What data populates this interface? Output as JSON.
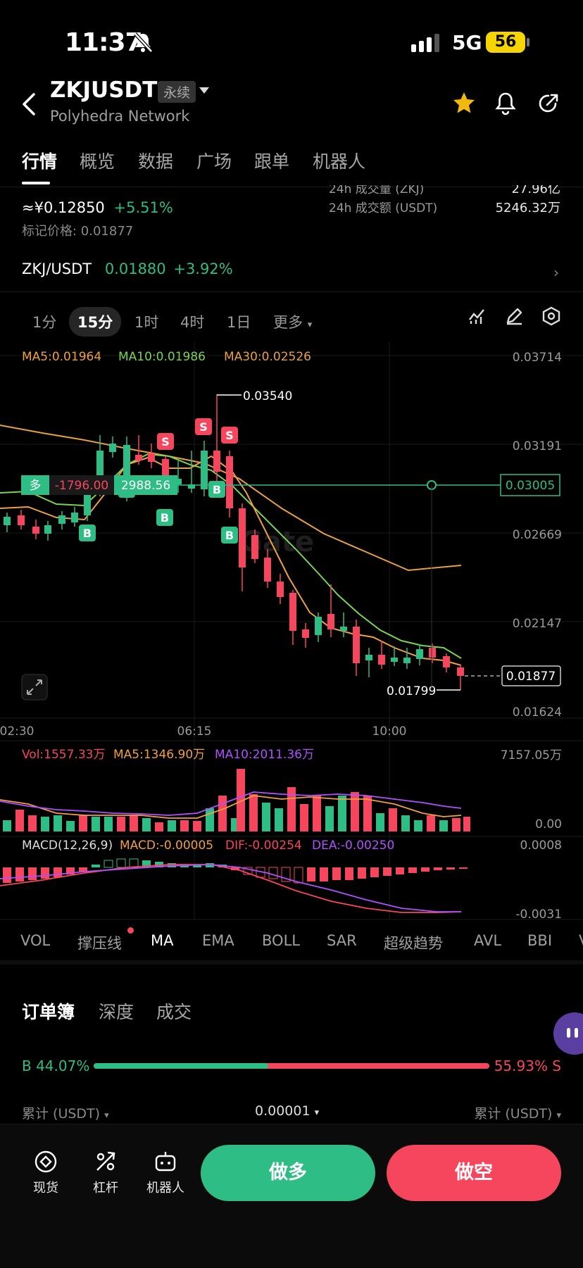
{
  "status_bar": {
    "time": "11:37",
    "network": "5G",
    "battery": "56"
  },
  "header": {
    "symbol": "ZKJUSDT",
    "contract_type": "永续",
    "subtitle": "Polyhedra Network",
    "icons": [
      "back-arrow-icon",
      "star-icon",
      "bell-icon",
      "share-icon"
    ]
  },
  "nav_tabs": [
    "行情",
    "概览",
    "数据",
    "广场",
    "跟单",
    "机器人"
  ],
  "ticker": {
    "price_cny": "≈¥0.12850",
    "change": "+5.51%",
    "mark_price": "标记价格: 0.01877",
    "stats": [
      {
        "label": "24h 成交量 (ZKJ)",
        "value": "27.96亿"
      },
      {
        "label": "24h 成交额 (USDT)",
        "value": "5246.32万"
      }
    ]
  },
  "spot_pair": {
    "name": "ZKJ/USDT",
    "price": "0.01880",
    "change": "+3.92%"
  },
  "timeframes": {
    "items": [
      "1分",
      "15分",
      "1时",
      "4时",
      "1日",
      "更多"
    ],
    "active": "15分"
  },
  "main_chart": {
    "ma_legend": {
      "ma5": "MA5:0.01964",
      "ma10": "MA10:0.01986",
      "ma30": "MA30:0.02526"
    },
    "y_ticks": [
      "0.03714",
      "0.03191",
      "0.02669",
      "0.02147",
      "0.01624"
    ],
    "x_ticks": [
      "02:30",
      "06:15",
      "10:00"
    ],
    "high_label": "0.03540",
    "low_label": "0.01799",
    "current_price": "0.01877",
    "position": {
      "side": "多",
      "pnl": "-1796.00",
      "size": "2988.56",
      "entry": "0.03005"
    },
    "watermark": "Gate"
  },
  "volume": {
    "legend": {
      "vol": "Vol:1557.33万",
      "ma5": "MA5:1346.90万",
      "ma10": "MA10:2011.36万"
    },
    "top": "7157.05万",
    "bottom": "0.00"
  },
  "macd": {
    "legend": {
      "title": "MACD(12,26,9)",
      "macd": "MACD:-0.00005",
      "dif": "DIF:-0.00254",
      "dea": "DEA:-0.00250"
    },
    "top": "0.0008",
    "bottom": "-0.0031"
  },
  "indicators": [
    "VOL",
    "撑压线",
    "MA",
    "EMA",
    "BOLL",
    "SAR",
    "超级趋势",
    "AVL",
    "BBI",
    "V"
  ],
  "orderbook": {
    "tabs": [
      "订单簿",
      "深度",
      "成交"
    ],
    "buy_pct": "B 44.07%",
    "sell_pct": "55.93% S",
    "buy_ratio": 0.4407,
    "col_left": "累计 (USDT)",
    "col_mid": "0.00001",
    "col_right": "累计 (USDT)"
  },
  "bottom_bar": {
    "tools": [
      "现货",
      "杠杆",
      "机器人"
    ],
    "long_btn": "做多",
    "short_btn": "做空"
  },
  "colors": {
    "up": "#2ebd85",
    "down": "#f6465d",
    "ma5": "#f0a040",
    "ma10": "#7ad450",
    "ma30": "#e8a040"
  }
}
